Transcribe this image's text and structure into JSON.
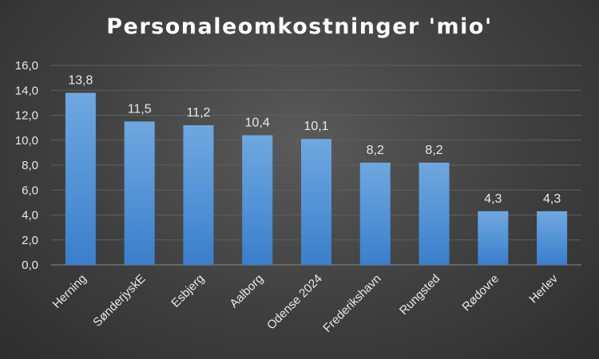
{
  "chart_data": {
    "type": "bar",
    "title": "Personaleomkostninger 'mio'",
    "categories": [
      "Herning",
      "SønderjyskE",
      "Esbjerg",
      "Aalborg",
      "Odense 2024",
      "Frederikshavn",
      "Rungsted",
      "Rødovre",
      "Herlev"
    ],
    "values": [
      13.8,
      11.5,
      11.2,
      10.4,
      10.1,
      8.2,
      8.2,
      4.3,
      4.3
    ],
    "data_labels": [
      "13,8",
      "11,5",
      "11,2",
      "10,4",
      "10,1",
      "8,2",
      "8,2",
      "4,3",
      "4,3"
    ],
    "ylim": [
      0,
      16
    ],
    "yticks": [
      "0,0",
      "2,0",
      "4,0",
      "6,0",
      "8,0",
      "10,0",
      "12,0",
      "14,0",
      "16,0"
    ],
    "xlabel": "",
    "ylabel": "",
    "grid": true,
    "legend": "none",
    "colors": {
      "bar_top": "#6fa8e0",
      "bar_bottom": "#3a7fcc",
      "grid": "#5e5e5e",
      "text": "#e8e8e8"
    }
  }
}
